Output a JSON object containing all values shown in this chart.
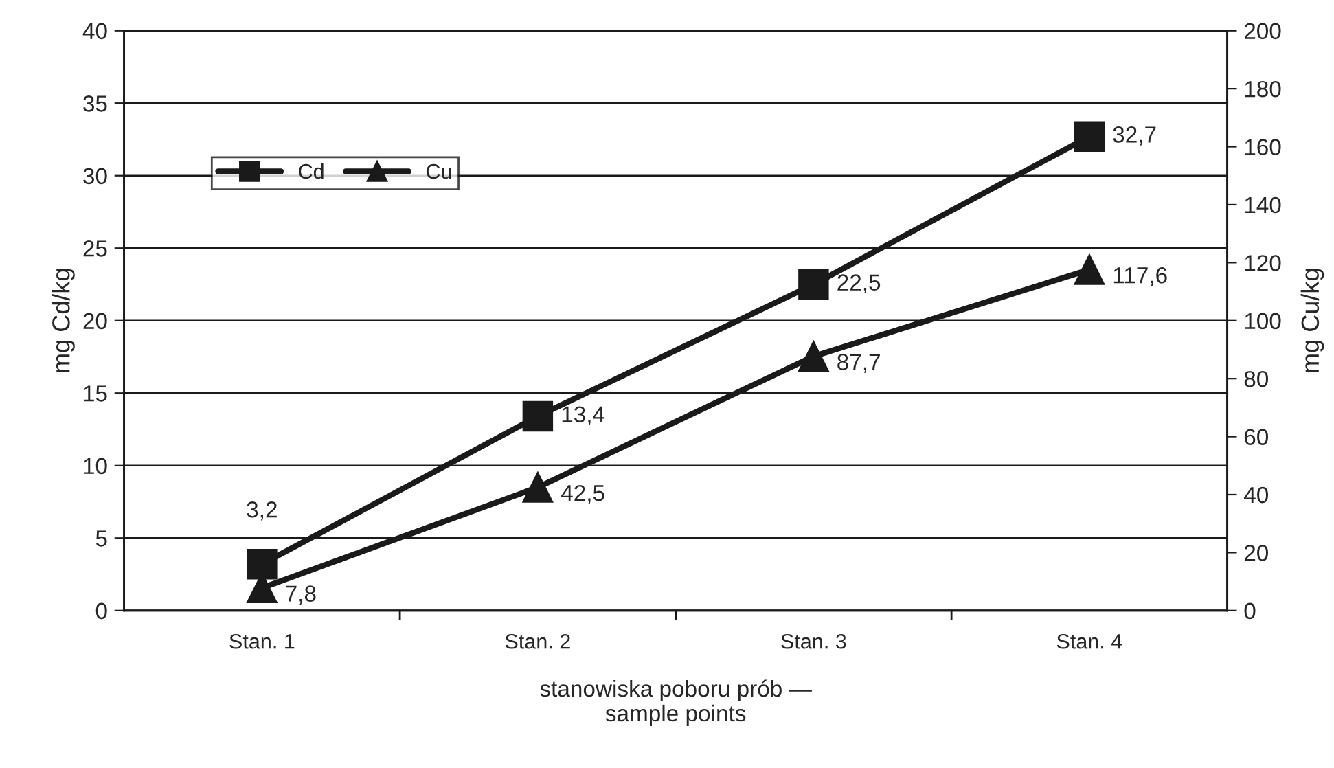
{
  "chart_data": {
    "type": "line",
    "categories": [
      "Stan. 1",
      "Stan. 2",
      "Stan. 3",
      "Stan. 4"
    ],
    "series": [
      {
        "name": "Cd",
        "color": "#1a1a1a",
        "marker": "square",
        "values": [
          3.2,
          13.4,
          22.5,
          32.7
        ],
        "value_labels": [
          "3,2",
          "13,4",
          "22,5",
          "32,7"
        ]
      },
      {
        "name": "Cu",
        "color": "#1a1a1a",
        "marker": "triangle",
        "axis": "y2",
        "values": [
          7.8,
          42.5,
          87.7,
          117.6
        ],
        "value_labels": [
          "7,8",
          "42,5",
          "87,7",
          "117,6"
        ]
      }
    ],
    "xlabel": "stanowiska poboru prób —\nsample points",
    "ylabel": "mg Cd/kg",
    "y2label": "mg Cu/kg",
    "ylim": [
      0,
      40
    ],
    "yticks": [
      0,
      5,
      10,
      15,
      20,
      25,
      30,
      35,
      40
    ],
    "y2lim": [
      0,
      200
    ],
    "y2ticks": [
      0,
      20,
      40,
      60,
      80,
      100,
      120,
      140,
      160,
      180,
      200
    ],
    "grid": "y",
    "legend": "top left",
    "line_style": "solid"
  }
}
